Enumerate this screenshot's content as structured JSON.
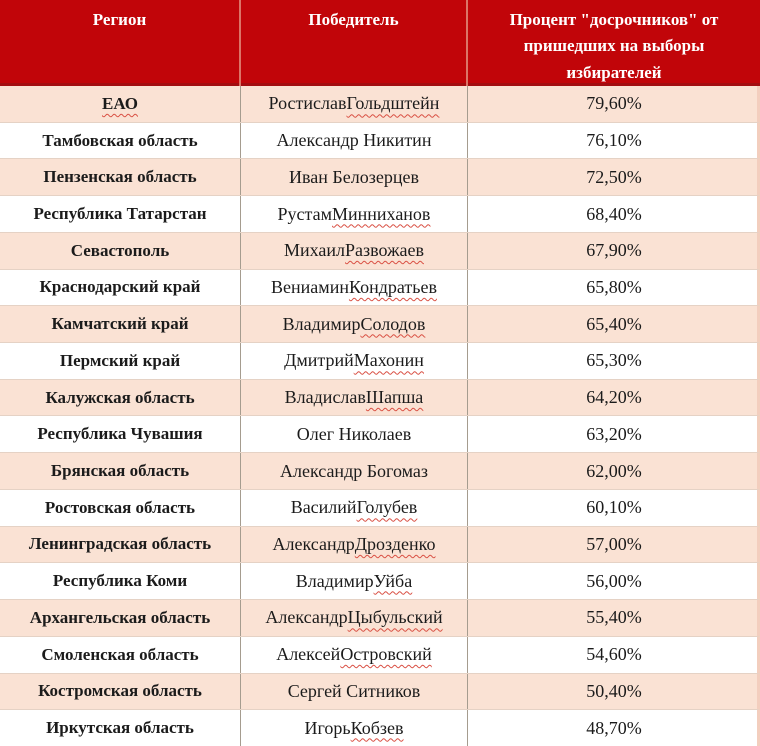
{
  "table": {
    "columns": [
      {
        "label": "Регион"
      },
      {
        "label": "Победитель"
      },
      {
        "label": "Процент \"досрочников\" от пришедших на выборы избирателей"
      }
    ],
    "rows": [
      {
        "region": "ЕАО",
        "region_spellcheck": true,
        "winner": "Ростислав Гольдштейн",
        "winner_spellcheck_word": "Гольдштейн",
        "percent": "79,60%"
      },
      {
        "region": "Тамбовская область",
        "region_spellcheck": false,
        "winner": "Александр Никитин",
        "winner_spellcheck_word": "",
        "percent": "76,10%"
      },
      {
        "region": "Пензенская область",
        "region_spellcheck": false,
        "winner": "Иван Белозерцев",
        "winner_spellcheck_word": "",
        "percent": "72,50%"
      },
      {
        "region": "Республика Татарстан",
        "region_spellcheck": false,
        "winner": "Рустам Минниханов",
        "winner_spellcheck_word": "Минниханов",
        "percent": "68,40%"
      },
      {
        "region": "Севастополь",
        "region_spellcheck": false,
        "winner": "Михаил Развожаев",
        "winner_spellcheck_word": "Развожаев",
        "percent": "67,90%"
      },
      {
        "region": "Краснодарский край",
        "region_spellcheck": false,
        "winner": "Вениамин Кондратьев",
        "winner_spellcheck_word": "Кондратьев",
        "percent": "65,80%"
      },
      {
        "region": "Камчатский край",
        "region_spellcheck": false,
        "winner": "Владимир Солодов",
        "winner_spellcheck_word": "Солодов",
        "percent": "65,40%"
      },
      {
        "region": "Пермский край",
        "region_spellcheck": false,
        "winner": "Дмитрий Махонин",
        "winner_spellcheck_word": "Махонин",
        "percent": "65,30%"
      },
      {
        "region": "Калужская область",
        "region_spellcheck": false,
        "winner": "Владислав Шапша",
        "winner_spellcheck_word": "Шапша",
        "percent": "64,20%"
      },
      {
        "region": "Республика Чувашия",
        "region_spellcheck": false,
        "winner": "Олег Николаев",
        "winner_spellcheck_word": "",
        "percent": "63,20%"
      },
      {
        "region": "Брянская область",
        "region_spellcheck": false,
        "winner": "Александр Богомаз",
        "winner_spellcheck_word": "",
        "percent": "62,00%"
      },
      {
        "region": "Ростовская область",
        "region_spellcheck": false,
        "winner": "Василий Голубев",
        "winner_spellcheck_word": "Голубев",
        "percent": "60,10%"
      },
      {
        "region": "Ленинградская область",
        "region_spellcheck": false,
        "winner": "Александр Дрозденко",
        "winner_spellcheck_word": "Дрозденко",
        "percent": "57,00%"
      },
      {
        "region": "Республика Коми",
        "region_spellcheck": false,
        "winner": "Владимир Уйба",
        "winner_spellcheck_word": "Уйба",
        "percent": "56,00%"
      },
      {
        "region": "Архангельская область",
        "region_spellcheck": false,
        "winner": "Александр Цыбульский",
        "winner_spellcheck_word": "Цыбульский",
        "percent": "55,40%"
      },
      {
        "region": "Смоленская область",
        "region_spellcheck": false,
        "winner": "Алексей Островский",
        "winner_spellcheck_word": "Островский",
        "percent": "54,60%"
      },
      {
        "region": "Костромская область",
        "region_spellcheck": false,
        "winner": "Сергей Ситников",
        "winner_spellcheck_word": "",
        "percent": "50,40%"
      },
      {
        "region": "Иркутская область",
        "region_spellcheck": false,
        "winner": "Игорь Кобзев",
        "winner_spellcheck_word": "Кобзев",
        "percent": "48,70%"
      }
    ]
  },
  "colors": {
    "header_bg": "#C10509",
    "header_text": "#FFFFFF",
    "header_divider": "#DC7568",
    "row_pink": "#FAE2D4",
    "row_white": "#FFFFFF",
    "cell_divider": "#A59C8F",
    "row_divider": "#E5D2C5",
    "right_edge": "#F3CEBE",
    "spellcheck_squiggle": "#D94F43",
    "body_text": "#1B1B1B"
  }
}
